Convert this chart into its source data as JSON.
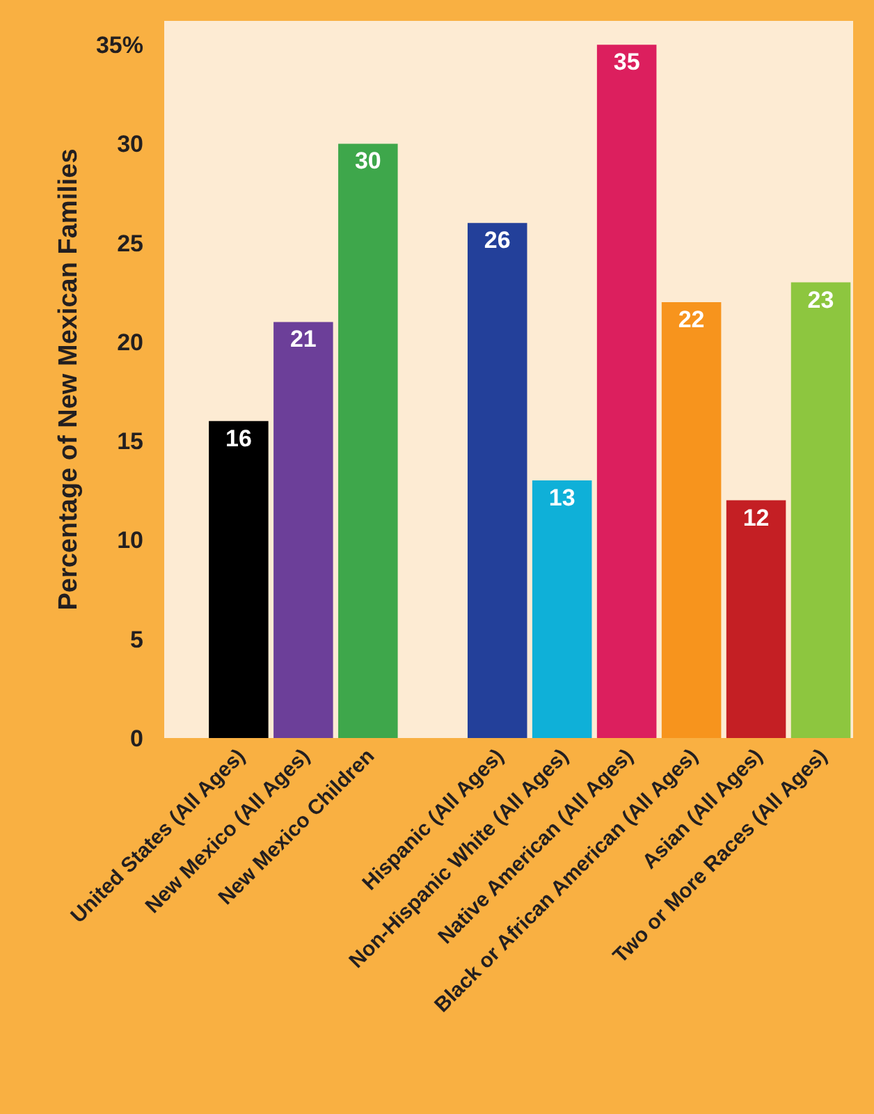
{
  "chart_data": {
    "type": "bar",
    "ylabel": "Percentage of New Mexican Families",
    "categories": [
      "United States (All Ages)",
      "New Mexico (All Ages)",
      "New Mexico Children",
      null,
      "Hispanic (All Ages)",
      "Non-Hispanic White (All Ages)",
      "Native American (All Ages)",
      "Black or African American (All Ages)",
      "Asian (All Ages)",
      "Two or More Races (All Ages)"
    ],
    "values": [
      16,
      21,
      30,
      null,
      26,
      13,
      35,
      22,
      12,
      23
    ],
    "colors": [
      "#000000",
      "#6c3f99",
      "#3ea74b",
      "#000000",
      "#23409a",
      "#0fb0d8",
      "#dc1f5e",
      "#f7941d",
      "#c41f24",
      "#8dc63f"
    ],
    "ylim": [
      0,
      36.2
    ],
    "yticks": [
      0,
      5,
      10,
      15,
      20,
      25,
      30,
      {
        "value": 35,
        "label": "35%"
      }
    ],
    "data_labels": true,
    "grid": false,
    "legend": false
  }
}
